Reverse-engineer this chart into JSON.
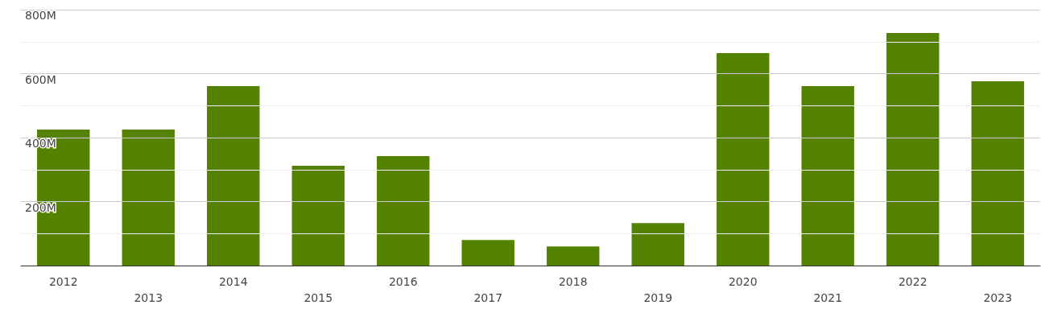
{
  "chart_data": {
    "type": "bar",
    "categories": [
      "2012",
      "2013",
      "2014",
      "2015",
      "2016",
      "2017",
      "2018",
      "2019",
      "2020",
      "2021",
      "2022",
      "2023"
    ],
    "values": [
      425,
      425,
      561,
      312,
      342,
      80,
      60,
      133,
      664,
      561,
      727,
      576
    ],
    "color": "#548200",
    "ylim": [
      0,
      800
    ],
    "yticks": [
      {
        "value": 0,
        "label": null
      },
      {
        "value": 100,
        "label": null
      },
      {
        "value": 200,
        "label": "200M"
      },
      {
        "value": 300,
        "label": null
      },
      {
        "value": 400,
        "label": "400M"
      },
      {
        "value": 500,
        "label": null
      },
      {
        "value": 600,
        "label": "600M"
      },
      {
        "value": 700,
        "label": null
      },
      {
        "value": 800,
        "label": "800M"
      }
    ],
    "grid": "y"
  }
}
